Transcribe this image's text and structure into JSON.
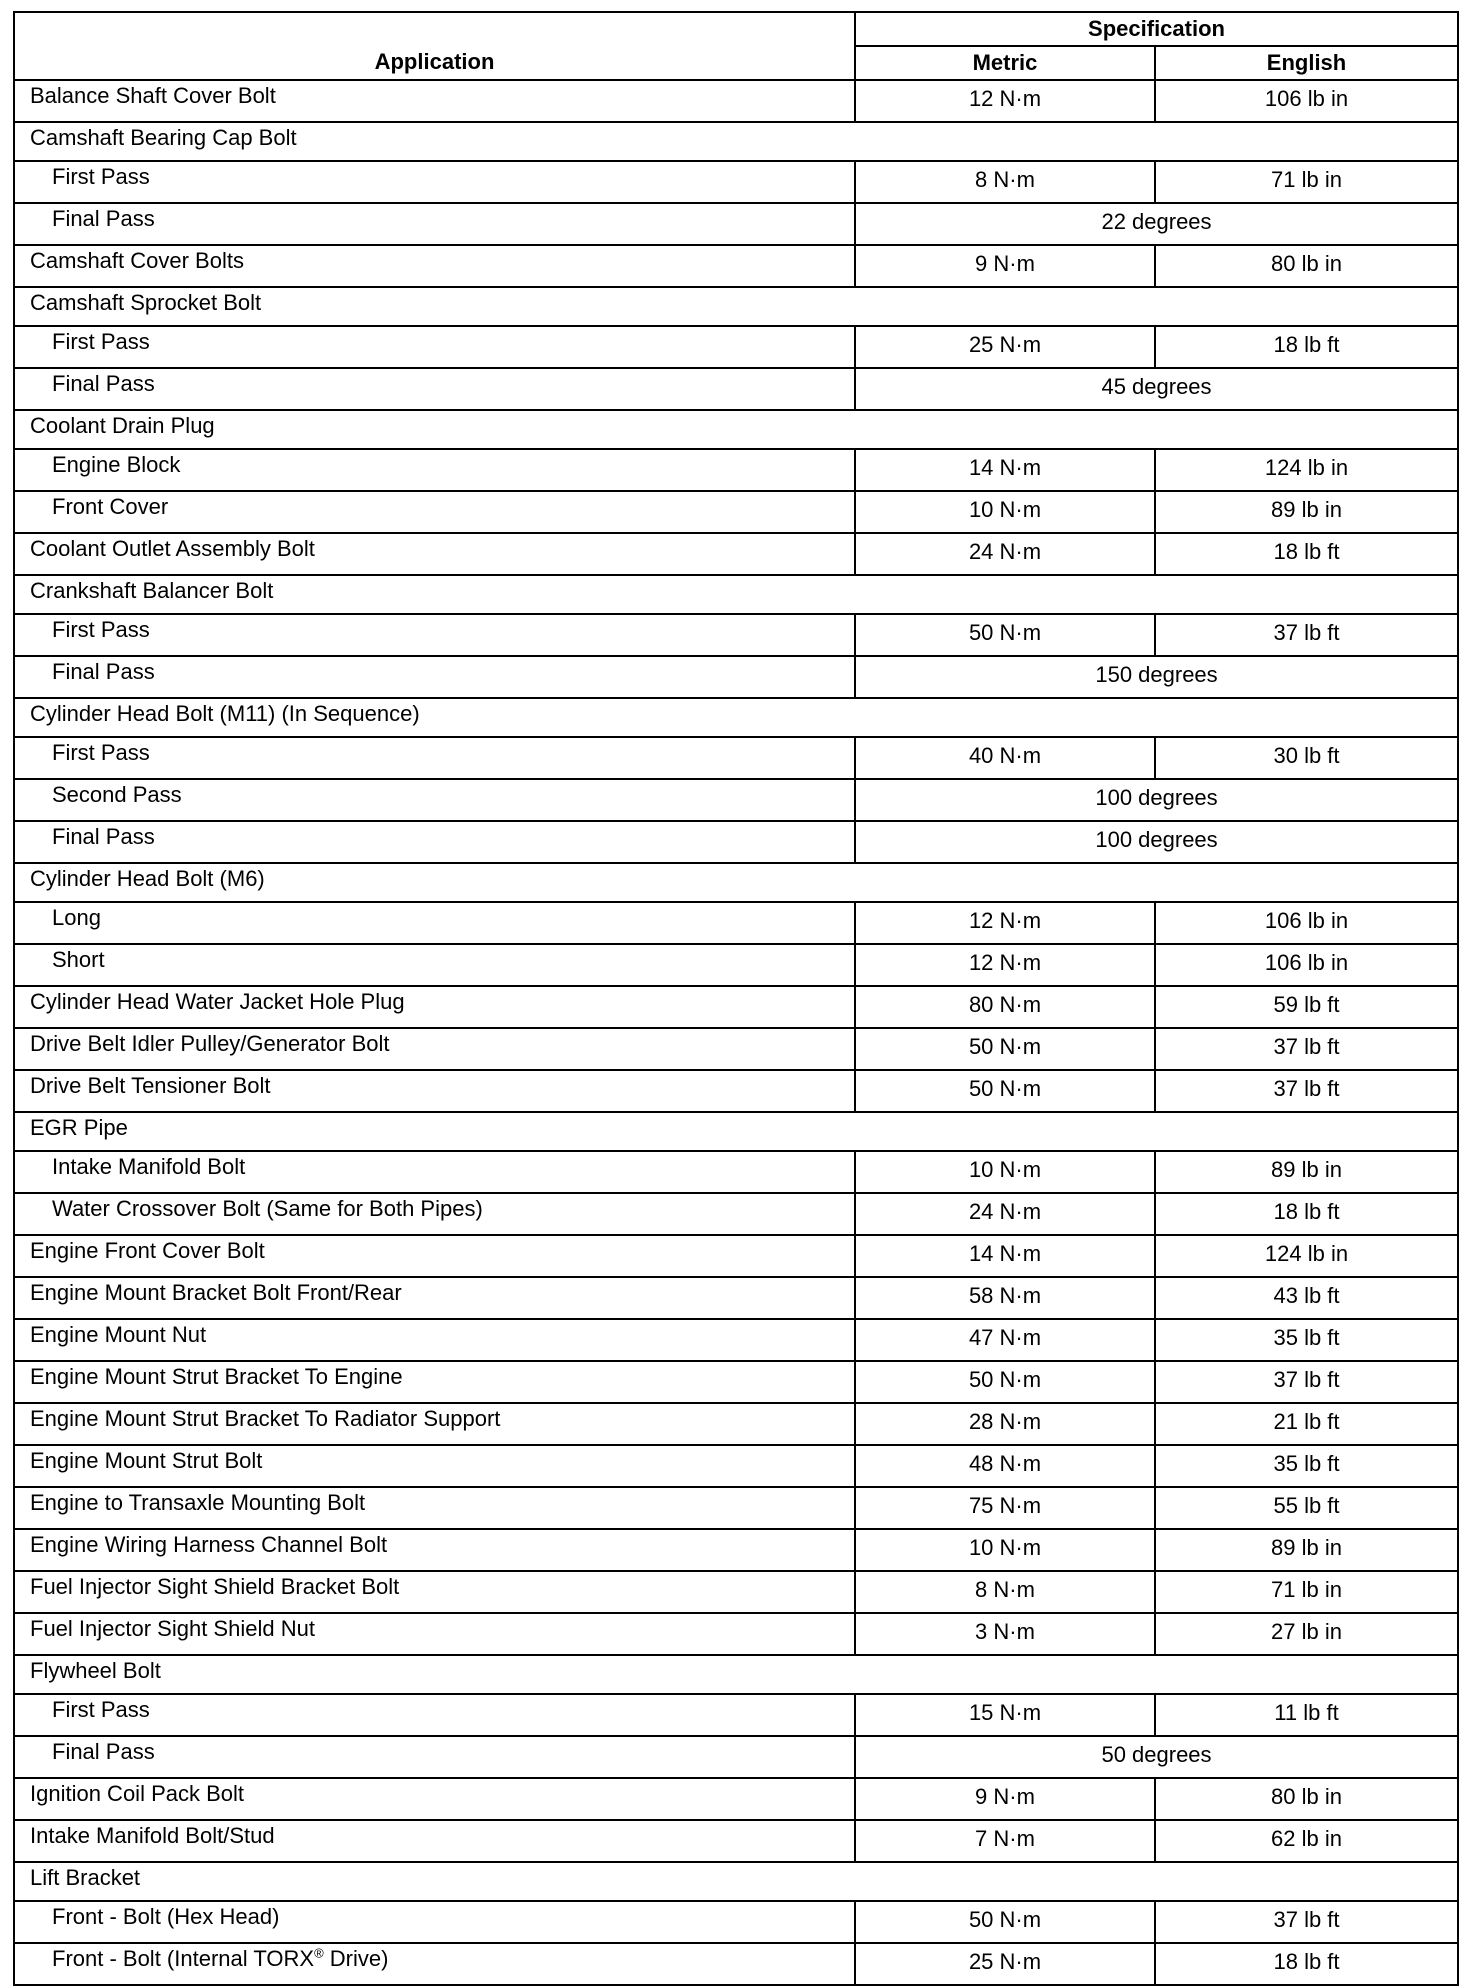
{
  "header": {
    "application": "Application",
    "specification": "Specification",
    "metric": "Metric",
    "english": "English"
  },
  "rows": [
    {
      "application": "Balance Shaft Cover Bolt",
      "indent": false,
      "metric": "12 N·m",
      "english": "106 lb in"
    },
    {
      "application": "Camshaft Bearing Cap Bolt",
      "indent": false,
      "group": true
    },
    {
      "application": "First Pass",
      "indent": true,
      "metric": "8 N·m",
      "english": "71 lb in"
    },
    {
      "application": "Final Pass",
      "indent": true,
      "combined": "22 degrees"
    },
    {
      "application": "Camshaft Cover Bolts",
      "indent": false,
      "metric": "9 N·m",
      "english": "80 lb in"
    },
    {
      "application": "Camshaft Sprocket Bolt",
      "indent": false,
      "group": true
    },
    {
      "application": "First Pass",
      "indent": true,
      "metric": "25 N·m",
      "english": "18 lb ft"
    },
    {
      "application": "Final Pass",
      "indent": true,
      "combined": "45 degrees"
    },
    {
      "application": "Coolant Drain Plug",
      "indent": false,
      "group": true
    },
    {
      "application": "Engine Block",
      "indent": true,
      "metric": "14 N·m",
      "english": "124 lb in"
    },
    {
      "application": "Front Cover",
      "indent": true,
      "metric": "10 N·m",
      "english": "89 lb in"
    },
    {
      "application": "Coolant Outlet Assembly Bolt",
      "indent": false,
      "metric": "24 N·m",
      "english": "18 lb ft"
    },
    {
      "application": "Crankshaft Balancer Bolt",
      "indent": false,
      "group": true
    },
    {
      "application": "First Pass",
      "indent": true,
      "metric": "50 N·m",
      "english": "37 lb ft"
    },
    {
      "application": "Final Pass",
      "indent": true,
      "combined": "150 degrees"
    },
    {
      "application": "Cylinder Head Bolt (M11) (In Sequence)",
      "indent": false,
      "group": true
    },
    {
      "application": "First Pass",
      "indent": true,
      "metric": "40 N·m",
      "english": "30 lb ft"
    },
    {
      "application": "Second Pass",
      "indent": true,
      "combined": "100 degrees"
    },
    {
      "application": "Final Pass",
      "indent": true,
      "combined": "100 degrees"
    },
    {
      "application": "Cylinder Head Bolt (M6)",
      "indent": false,
      "group": true
    },
    {
      "application": "Long",
      "indent": true,
      "metric": "12 N·m",
      "english": "106 lb in"
    },
    {
      "application": "Short",
      "indent": true,
      "metric": "12 N·m",
      "english": "106 lb in"
    },
    {
      "application": "Cylinder Head Water Jacket Hole Plug",
      "indent": false,
      "metric": "80 N·m",
      "english": "59 lb ft"
    },
    {
      "application": "Drive Belt Idler Pulley/Generator Bolt",
      "indent": false,
      "metric": "50 N·m",
      "english": "37 lb ft"
    },
    {
      "application": "Drive Belt Tensioner Bolt",
      "indent": false,
      "metric": "50 N·m",
      "english": "37 lb ft"
    },
    {
      "application": "EGR Pipe",
      "indent": false,
      "group": true
    },
    {
      "application": "Intake Manifold Bolt",
      "indent": true,
      "metric": "10 N·m",
      "english": "89 lb in"
    },
    {
      "application": "Water Crossover Bolt (Same for Both Pipes)",
      "indent": true,
      "metric": "24 N·m",
      "english": "18 lb ft"
    },
    {
      "application": "Engine Front Cover Bolt",
      "indent": false,
      "metric": "14 N·m",
      "english": "124 lb in"
    },
    {
      "application": "Engine Mount Bracket Bolt Front/Rear",
      "indent": false,
      "metric": "58 N·m",
      "english": "43 lb ft"
    },
    {
      "application": "Engine Mount Nut",
      "indent": false,
      "metric": "47 N·m",
      "english": "35 lb ft"
    },
    {
      "application": "Engine Mount Strut Bracket To Engine",
      "indent": false,
      "metric": "50  N·m",
      "english": "37 lb ft"
    },
    {
      "application": "Engine Mount Strut Bracket To Radiator Support",
      "indent": false,
      "metric": "28  N·m",
      "english": "21 lb ft"
    },
    {
      "application": "Engine Mount Strut Bolt",
      "indent": false,
      "metric": "48 N·m",
      "english": "35  lb ft"
    },
    {
      "application": "Engine to Transaxle Mounting Bolt",
      "indent": false,
      "metric": "75 N·m",
      "english": "55 lb ft"
    },
    {
      "application": "Engine Wiring Harness Channel Bolt",
      "indent": false,
      "metric": "10  N·m",
      "english": "89 lb in"
    },
    {
      "application": "Fuel Injector Sight Shield Bracket Bolt",
      "indent": false,
      "metric": "8 N·m",
      "english": "71 lb in"
    },
    {
      "application": "Fuel Injector Sight Shield Nut",
      "indent": false,
      "metric": "3 N·m",
      "english": "27 lb in"
    },
    {
      "application": "Flywheel Bolt",
      "indent": false,
      "group": true
    },
    {
      "application": "First Pass",
      "indent": true,
      "metric": "15 N·m",
      "english": "11 lb ft"
    },
    {
      "application": "Final Pass",
      "indent": true,
      "combined": "50 degrees"
    },
    {
      "application": "Ignition Coil Pack Bolt",
      "indent": false,
      "metric": "9 N·m",
      "english": "80 lb in"
    },
    {
      "application": "Intake Manifold Bolt/Stud",
      "indent": false,
      "metric": "7 N·m",
      "english": "62 lb in"
    },
    {
      "application": "Lift Bracket",
      "indent": false,
      "group": true
    },
    {
      "application": "Front - Bolt (Hex Head)",
      "indent": true,
      "metric": "50 N·m",
      "english": "37 lb ft"
    },
    {
      "application": "Front - Bolt (Internal TORX® Drive)",
      "indent": true,
      "metric": "25 N·m",
      "english": "18 lb ft"
    }
  ]
}
